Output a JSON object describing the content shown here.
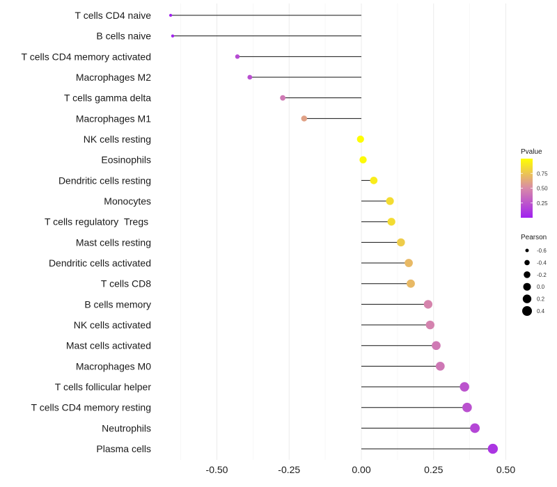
{
  "chart_data": {
    "type": "lollipop",
    "title": "",
    "xlabel": "",
    "ylabel": "",
    "xlim": [
      -0.69,
      0.53
    ],
    "x_ticks": [
      -0.5,
      -0.25,
      0.0,
      0.25,
      0.5
    ],
    "x_tick_labels": [
      "-0.50",
      "-0.25",
      "0.00",
      "0.25",
      "0.50"
    ],
    "grid": true,
    "categories": [
      "T cells CD4 naive",
      "B cells naive",
      "T cells CD4 memory activated",
      "Macrophages M2",
      "T cells gamma delta",
      "Macrophages M1",
      "NK cells resting",
      "Eosinophils",
      "Dendritic cells resting",
      "Monocytes",
      "T cells regulatory  Tregs ",
      "Mast cells resting",
      "Dendritic cells activated",
      "T cells CD8",
      "B cells memory",
      "NK cells activated",
      "Mast cells activated",
      "Macrophages M0",
      "T cells follicular helper",
      "T cells CD4 memory resting",
      "Neutrophils",
      "Plasma cells"
    ],
    "pearson": [
      -0.66,
      -0.653,
      -0.429,
      -0.386,
      -0.272,
      -0.198,
      -0.003,
      0.006,
      0.043,
      0.099,
      0.104,
      0.137,
      0.164,
      0.171,
      0.231,
      0.238,
      0.259,
      0.273,
      0.357,
      0.366,
      0.393,
      0.455
    ],
    "pvalue": [
      0.01,
      0.02,
      0.2,
      0.22,
      0.42,
      0.6,
      0.99,
      0.98,
      0.92,
      0.85,
      0.85,
      0.78,
      0.7,
      0.7,
      0.47,
      0.46,
      0.42,
      0.41,
      0.24,
      0.23,
      0.18,
      0.1
    ],
    "color_scale": {
      "title": "Pvalue",
      "low_color": "#a020f0",
      "mid_color": "#d88aa8",
      "high_color": "#ffff00",
      "range": [
        0,
        1
      ],
      "ticks": [
        0.25,
        0.5,
        0.75
      ],
      "tick_labels": [
        "0.25",
        "0.50",
        "0.75"
      ]
    },
    "size_legend": {
      "title": "Pearson",
      "values": [
        -0.6,
        -0.4,
        -0.2,
        0.0,
        0.2,
        0.4
      ],
      "labels": [
        "-0.6",
        "-0.4",
        "-0.2",
        "0.0",
        "0.2",
        "0.4"
      ]
    },
    "legend_position": "right"
  }
}
